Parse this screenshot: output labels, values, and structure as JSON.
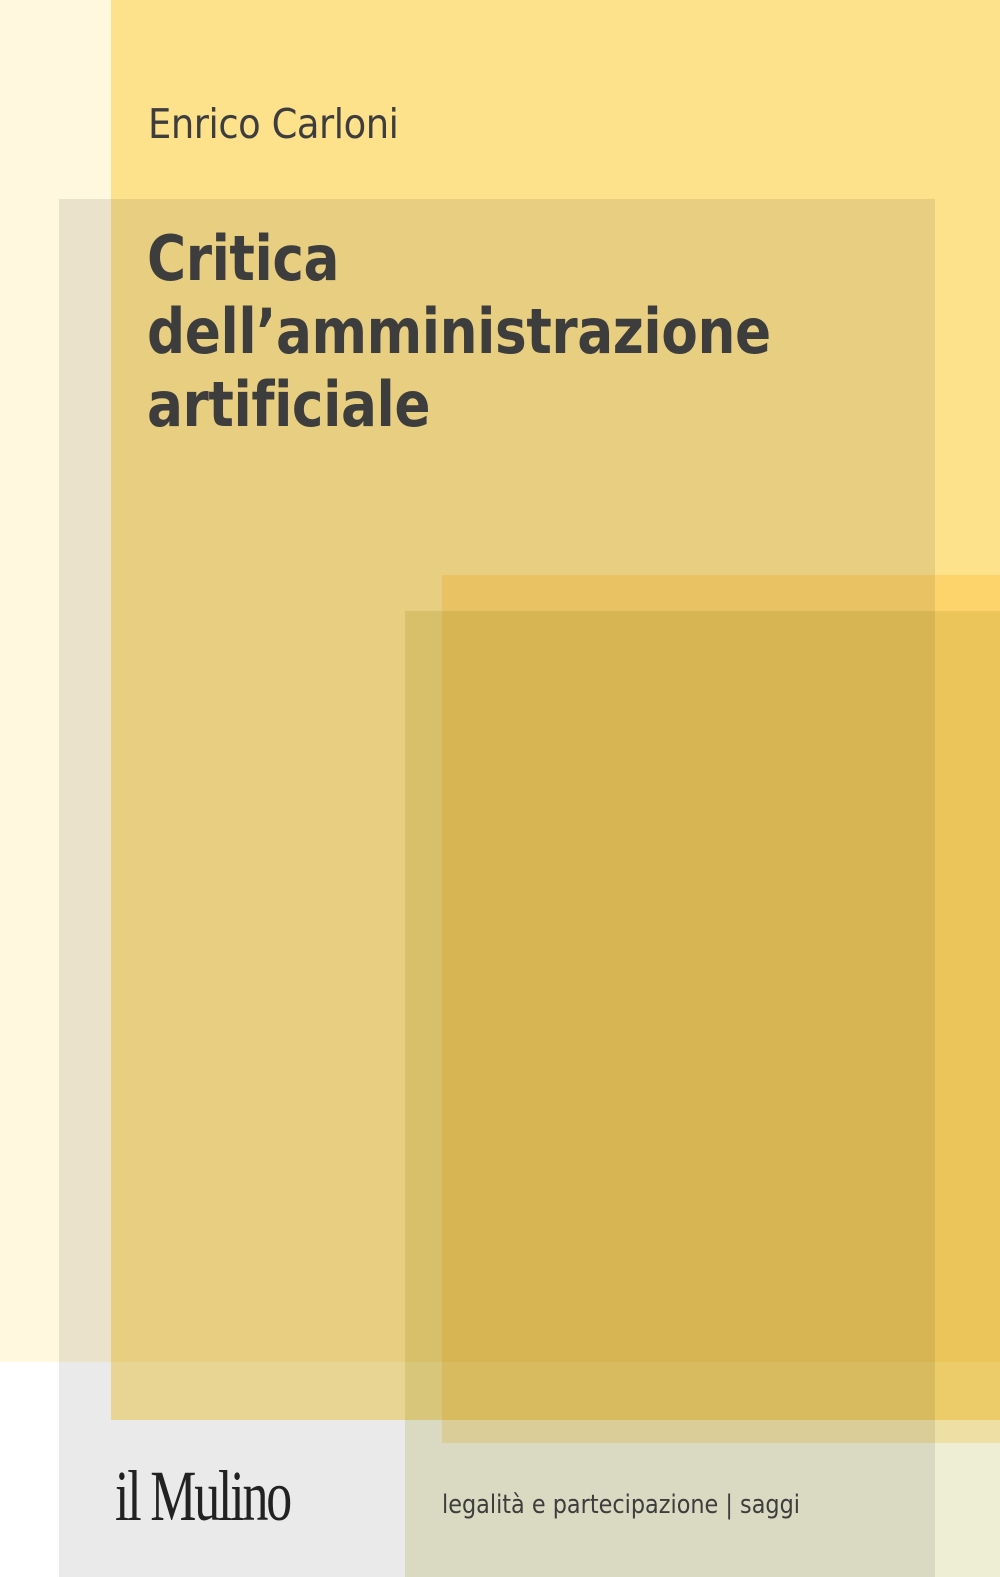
{
  "cover": {
    "author": "Enrico Carloni",
    "title_lines": [
      "Critica",
      "dell’amministrazione",
      "artificiale"
    ],
    "publisher": "il Mulino",
    "series": "legalità e partecipazione | saggi"
  },
  "colors": {
    "text": "#3d3d3d",
    "yellow": "#fde9a0",
    "cream": "#fff7de",
    "gray_overlay": "#eaeaea",
    "ochre": "#e1c460"
  }
}
